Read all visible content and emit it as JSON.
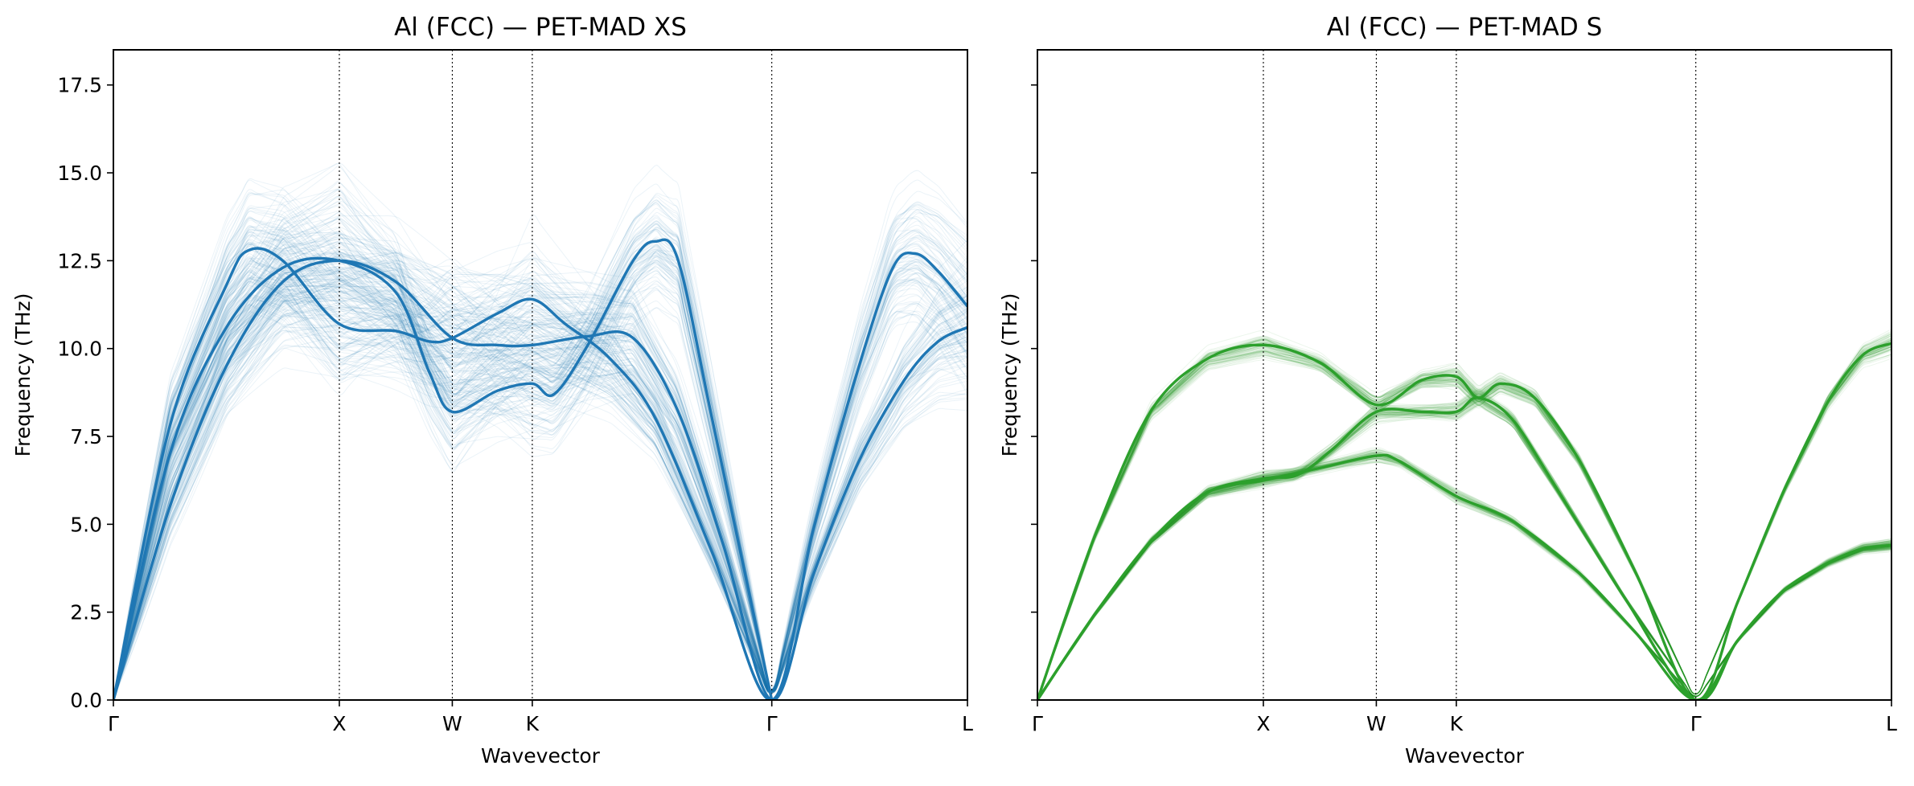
{
  "chart_data": [
    {
      "type": "line",
      "title": "Al (FCC) — PET-MAD XS",
      "xlabel": "Wavevector",
      "ylabel": "Frequency (THz)",
      "ylim": [
        0,
        18.5
      ],
      "yticks": [
        "0.0",
        "2.5",
        "5.0",
        "7.5",
        "10.0",
        "12.5",
        "15.0",
        "17.5"
      ],
      "ytick_values": [
        0,
        2.5,
        5,
        7.5,
        10,
        12.5,
        15,
        17.5
      ],
      "x_ticks": [
        {
          "label": "Γ",
          "pos": 0
        },
        {
          "label": "X",
          "pos": 1.0
        },
        {
          "label": "W",
          "pos": 1.5
        },
        {
          "label": "K",
          "pos": 1.854
        },
        {
          "label": "Γ",
          "pos": 2.914
        },
        {
          "label": "L",
          "pos": 3.78
        }
      ],
      "xlim": [
        0,
        3.78
      ],
      "grid": false,
      "color": "#1f77b4",
      "ensemble_spread": 0.3,
      "series": [
        {
          "points": [
            [
              0,
              0
            ],
            [
              0.25,
              5.5
            ],
            [
              0.5,
              9.5
            ],
            [
              0.75,
              11.9
            ],
            [
              1.0,
              12.5
            ],
            [
              1.25,
              11.9
            ],
            [
              1.5,
              10.3
            ],
            [
              1.7,
              10.1
            ],
            [
              1.854,
              10.1
            ],
            [
              2.1,
              10.35
            ],
            [
              2.3,
              10.3
            ],
            [
              2.5,
              8.2
            ],
            [
              2.7,
              4.4
            ],
            [
              2.914,
              0
            ],
            [
              3.1,
              3.6
            ],
            [
              3.3,
              6.8
            ],
            [
              3.5,
              9.1
            ],
            [
              3.65,
              10.2
            ],
            [
              3.78,
              10.6
            ]
          ]
        },
        {
          "points": [
            [
              0,
              0
            ],
            [
              0.25,
              7.8
            ],
            [
              0.5,
              11.8
            ],
            [
              0.6,
              12.8
            ],
            [
              0.75,
              12.5
            ],
            [
              1.0,
              10.7
            ],
            [
              1.25,
              10.5
            ],
            [
              1.4,
              10.2
            ],
            [
              1.5,
              10.3
            ],
            [
              1.7,
              11.0
            ],
            [
              1.854,
              11.4
            ],
            [
              2.0,
              10.7
            ],
            [
              2.2,
              9.7
            ],
            [
              2.4,
              8.0
            ],
            [
              2.65,
              4.2
            ],
            [
              2.914,
              0
            ],
            [
              3.1,
              4.9
            ],
            [
              3.3,
              9.5
            ],
            [
              3.45,
              12.3
            ],
            [
              3.55,
              12.7
            ],
            [
              3.65,
              12.2
            ],
            [
              3.78,
              11.2
            ]
          ]
        },
        {
          "points": [
            [
              0,
              0
            ],
            [
              0.25,
              7.0
            ],
            [
              0.5,
              10.6
            ],
            [
              0.75,
              12.3
            ],
            [
              1.0,
              12.5
            ],
            [
              1.25,
              11.6
            ],
            [
              1.4,
              9.3
            ],
            [
              1.5,
              8.2
            ],
            [
              1.7,
              8.8
            ],
            [
              1.854,
              9.0
            ],
            [
              1.95,
              8.7
            ],
            [
              2.1,
              10.1
            ],
            [
              2.3,
              12.5
            ],
            [
              2.4,
              13.05
            ],
            [
              2.5,
              12.5
            ],
            [
              2.65,
              8.0
            ],
            [
              2.914,
              0
            ]
          ]
        }
      ]
    },
    {
      "type": "line",
      "title": "Al (FCC) — PET-MAD S",
      "xlabel": "Wavevector",
      "ylabel": "Frequency (THz)",
      "ylim": [
        0,
        18.5
      ],
      "yticks": [
        "",
        "",
        "",
        "",
        "",
        "",
        "",
        ""
      ],
      "ytick_values": [
        0,
        2.5,
        5,
        7.5,
        10,
        12.5,
        15,
        17.5
      ],
      "x_ticks": [
        {
          "label": "Γ",
          "pos": 0
        },
        {
          "label": "X",
          "pos": 1.0
        },
        {
          "label": "W",
          "pos": 1.5
        },
        {
          "label": "K",
          "pos": 1.854
        },
        {
          "label": "Γ",
          "pos": 2.914
        },
        {
          "label": "L",
          "pos": 3.78
        }
      ],
      "xlim": [
        0,
        3.78
      ],
      "grid": false,
      "color": "#2ca02c",
      "ensemble_spread": 0.05,
      "series": [
        {
          "points": [
            [
              0,
              0
            ],
            [
              0.25,
              4.6
            ],
            [
              0.5,
              8.2
            ],
            [
              0.75,
              9.7
            ],
            [
              1.0,
              10.1
            ],
            [
              1.25,
              9.6
            ],
            [
              1.5,
              8.4
            ],
            [
              1.7,
              9.1
            ],
            [
              1.854,
              9.2
            ],
            [
              1.95,
              8.6
            ],
            [
              2.05,
              9.0
            ],
            [
              2.2,
              8.6
            ],
            [
              2.4,
              6.8
            ],
            [
              2.65,
              3.6
            ],
            [
              2.914,
              0
            ],
            [
              3.1,
              2.8
            ],
            [
              3.3,
              5.9
            ],
            [
              3.5,
              8.5
            ],
            [
              3.65,
              9.8
            ],
            [
              3.78,
              10.15
            ]
          ]
        },
        {
          "points": [
            [
              0,
              0
            ],
            [
              0.25,
              2.4
            ],
            [
              0.5,
              4.5
            ],
            [
              0.75,
              5.9
            ],
            [
              1.0,
              6.3
            ],
            [
              1.15,
              6.4
            ],
            [
              1.3,
              7.1
            ],
            [
              1.5,
              8.2
            ],
            [
              1.7,
              8.2
            ],
            [
              1.854,
              8.2
            ],
            [
              1.95,
              8.6
            ],
            [
              2.1,
              8.0
            ],
            [
              2.3,
              6.0
            ],
            [
              2.6,
              2.9
            ],
            [
              2.914,
              0
            ],
            [
              3.1,
              1.7
            ],
            [
              3.3,
              3.1
            ],
            [
              3.5,
              3.9
            ],
            [
              3.65,
              4.3
            ],
            [
              3.78,
              4.4
            ]
          ]
        },
        {
          "points": [
            [
              0,
              0
            ],
            [
              0.25,
              2.4
            ],
            [
              0.5,
              4.5
            ],
            [
              0.75,
              5.9
            ],
            [
              1.0,
              6.25
            ],
            [
              1.25,
              6.6
            ],
            [
              1.5,
              6.95
            ],
            [
              1.6,
              6.8
            ],
            [
              1.854,
              5.8
            ],
            [
              2.1,
              5.1
            ],
            [
              2.4,
              3.6
            ],
            [
              2.65,
              1.9
            ],
            [
              2.914,
              0
            ],
            [
              3.1,
              1.7
            ],
            [
              3.3,
              3.1
            ],
            [
              3.5,
              3.9
            ],
            [
              3.65,
              4.3
            ],
            [
              3.78,
              4.4
            ]
          ]
        }
      ]
    }
  ]
}
